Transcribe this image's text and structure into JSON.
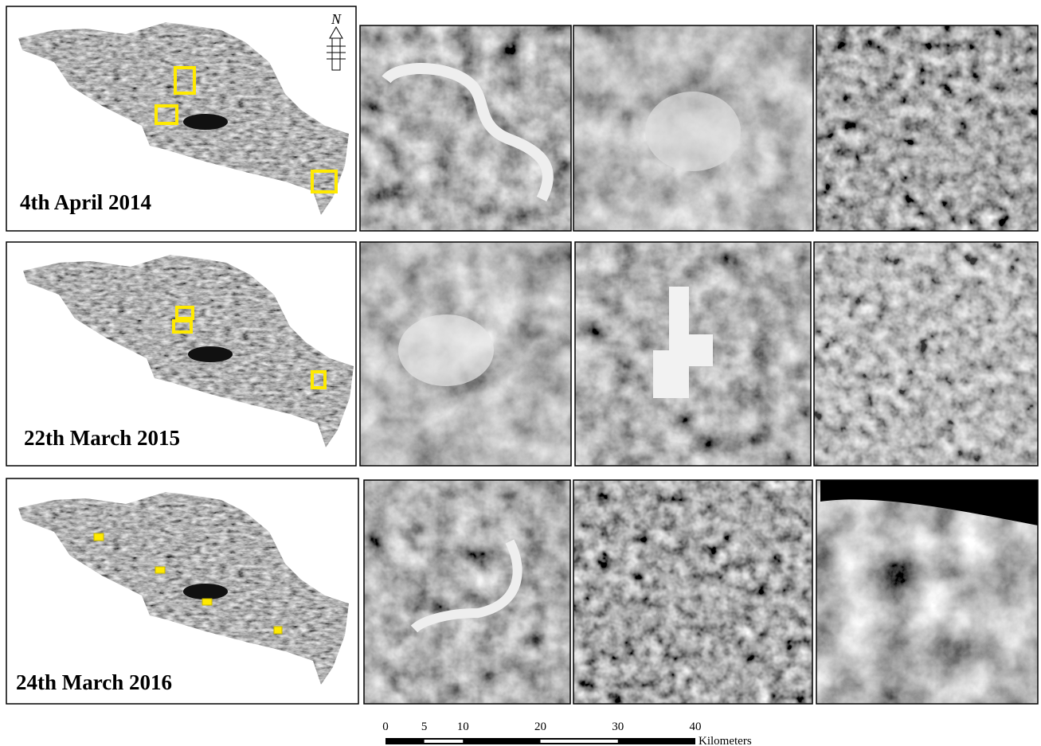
{
  "panels": [
    {
      "date": "4th April 2014"
    },
    {
      "date": "22th March 2015"
    },
    {
      "date": "24th March 2016"
    }
  ],
  "north_arrow": "N",
  "scale_bar": {
    "ticks": [
      "0",
      "5",
      "10",
      "20",
      "30",
      "40"
    ],
    "unit": "Kilometers"
  }
}
